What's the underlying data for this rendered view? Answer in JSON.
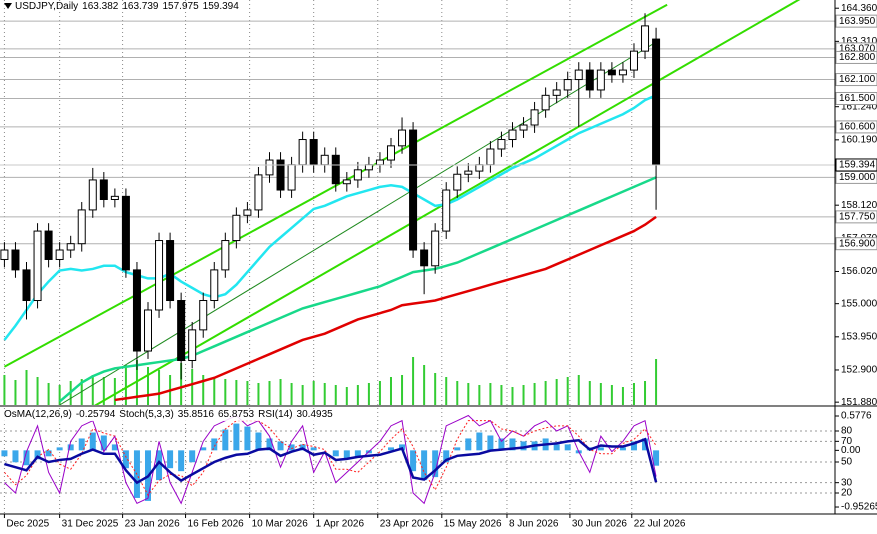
{
  "chart_data": [
    {
      "type": "candlestick",
      "title": "USDJPY,Daily",
      "open": [
        156.4,
        156.7,
        156.07,
        155.1,
        157.3,
        156.4,
        156.7,
        156.9,
        157.97,
        158.92,
        158.3,
        158.4,
        156.07,
        153.5,
        154.8,
        157.0,
        155.1,
        153.2,
        154.17,
        155.1,
        156.07,
        157.0,
        157.8,
        157.97,
        159.08,
        159.55,
        158.6,
        159.4,
        160.2,
        159.4,
        159.7,
        158.8,
        158.92,
        159.24,
        159.4,
        159.55,
        160.0,
        160.5,
        156.7,
        156.2,
        157.3,
        158.6,
        159.1,
        159.2,
        159.4,
        159.9,
        160.2,
        160.5,
        160.66,
        161.14,
        161.6,
        161.77,
        162.1,
        162.4,
        161.77,
        162.4,
        162.25,
        162.4,
        163.0,
        163.382
      ],
      "high": [
        156.95,
        156.95,
        156.32,
        157.55,
        157.55,
        156.95,
        157.15,
        158.22,
        159.3,
        159.17,
        158.65,
        158.65,
        156.32,
        155.05,
        157.25,
        157.25,
        155.35,
        154.42,
        155.35,
        156.32,
        157.25,
        158.05,
        158.22,
        159.33,
        159.8,
        159.8,
        159.65,
        160.45,
        160.45,
        159.95,
        159.95,
        159.17,
        159.49,
        159.65,
        159.8,
        160.25,
        160.9,
        160.75,
        156.95,
        157.55,
        158.85,
        159.35,
        159.45,
        159.65,
        160.15,
        160.45,
        160.75,
        160.91,
        161.39,
        161.85,
        162.02,
        162.35,
        162.65,
        162.65,
        162.65,
        162.65,
        162.65,
        163.25,
        164.2,
        163.739
      ],
      "low": [
        156.15,
        155.82,
        154.5,
        154.85,
        156.15,
        156.15,
        156.45,
        156.65,
        157.72,
        158.05,
        158.05,
        155.82,
        152.9,
        153.25,
        154.55,
        154.85,
        152.6,
        152.95,
        153.92,
        154.85,
        155.82,
        156.75,
        157.55,
        157.72,
        158.83,
        158.35,
        158.35,
        159.15,
        159.15,
        159.15,
        158.55,
        158.55,
        158.67,
        158.99,
        159.15,
        159.3,
        159.75,
        156.45,
        155.3,
        155.95,
        157.05,
        158.35,
        158.85,
        158.95,
        159.15,
        159.65,
        159.95,
        160.25,
        160.41,
        160.89,
        161.35,
        161.52,
        160.6,
        161.52,
        161.52,
        162.0,
        162.0,
        162.15,
        162.75,
        157.975
      ],
      "close": [
        156.7,
        156.07,
        155.1,
        157.3,
        156.4,
        156.7,
        156.9,
        157.97,
        158.92,
        158.3,
        158.4,
        156.07,
        153.5,
        154.8,
        157.0,
        155.1,
        153.2,
        154.17,
        155.1,
        156.07,
        157.0,
        157.8,
        157.97,
        159.08,
        159.55,
        158.6,
        159.4,
        160.2,
        159.4,
        159.7,
        158.8,
        158.92,
        159.24,
        159.4,
        159.55,
        160.0,
        160.5,
        156.7,
        156.2,
        157.3,
        158.6,
        159.1,
        159.2,
        159.4,
        159.9,
        160.2,
        160.5,
        160.66,
        161.14,
        161.6,
        161.77,
        162.1,
        162.4,
        161.77,
        162.4,
        162.25,
        162.4,
        163.0,
        163.8,
        159.394
      ],
      "volume": [
        30,
        25,
        35,
        28,
        22,
        20,
        24,
        26,
        30,
        28,
        27,
        40,
        45,
        38,
        35,
        30,
        42,
        36,
        30,
        28,
        26,
        25,
        24,
        22,
        24,
        26,
        22,
        20,
        24,
        22,
        20,
        18,
        20,
        22,
        24,
        28,
        30,
        48,
        40,
        32,
        28,
        24,
        22,
        20,
        22,
        20,
        18,
        20,
        22,
        24,
        26,
        28,
        30,
        24,
        22,
        20,
        18,
        22,
        24,
        46
      ],
      "up_color": "#ffffff",
      "down_color": "#000000",
      "volume_color": "#33cc33",
      "series": [
        {
          "color": "#22e6f0",
          "values": [
            153.85,
            154.3,
            154.8,
            155.3,
            155.7,
            156.05,
            156.1,
            156.05,
            156.1,
            156.2,
            156.2,
            156.0,
            155.9,
            155.8,
            155.8,
            155.95,
            155.7,
            155.5,
            155.3,
            155.2,
            155.3,
            155.6,
            156.0,
            156.4,
            156.8,
            157.1,
            157.4,
            157.7,
            158.0,
            158.1,
            158.25,
            158.4,
            158.5,
            158.6,
            158.7,
            158.75,
            158.7,
            158.5,
            158.3,
            158.1,
            158.15,
            158.3,
            158.5,
            158.7,
            158.9,
            159.1,
            159.3,
            159.45,
            159.6,
            159.8,
            160.0,
            160.2,
            160.4,
            160.55,
            160.7,
            160.85,
            161.0,
            161.2,
            161.45,
            161.6
          ]
        },
        {
          "color": "#18d98a",
          "values": [
            null,
            null,
            null,
            null,
            null,
            151.9,
            152.2,
            152.5,
            152.7,
            152.85,
            152.95,
            153.0,
            153.05,
            153.1,
            153.15,
            153.2,
            153.25,
            153.35,
            153.5,
            153.65,
            153.8,
            153.95,
            154.1,
            154.25,
            154.4,
            154.55,
            154.7,
            154.85,
            154.95,
            155.05,
            155.15,
            155.25,
            155.35,
            155.45,
            155.55,
            155.7,
            155.85,
            156.0,
            156.05,
            156.1,
            156.2,
            156.3,
            156.45,
            156.6,
            156.75,
            156.9,
            157.05,
            157.2,
            157.35,
            157.5,
            157.65,
            157.8,
            157.95,
            158.1,
            158.25,
            158.4,
            158.55,
            158.7,
            158.85,
            159.0
          ]
        },
        {
          "color": "#e00000",
          "values": [
            null,
            null,
            null,
            null,
            null,
            null,
            null,
            null,
            null,
            null,
            151.95,
            152.0,
            152.05,
            152.1,
            152.15,
            152.25,
            152.35,
            152.45,
            152.55,
            152.65,
            152.8,
            152.95,
            153.1,
            153.25,
            153.4,
            153.55,
            153.7,
            153.85,
            153.95,
            154.05,
            154.2,
            154.35,
            154.5,
            154.6,
            154.7,
            154.8,
            154.95,
            155.0,
            155.05,
            155.1,
            155.2,
            155.3,
            155.4,
            155.5,
            155.6,
            155.7,
            155.8,
            155.9,
            156.0,
            156.1,
            156.25,
            156.4,
            156.55,
            156.7,
            156.85,
            157.0,
            157.15,
            157.3,
            157.5,
            157.75
          ]
        }
      ],
      "trendlines": [
        {
          "color": "#33dd00",
          "x": [
            0,
            60
          ],
          "y": [
            153.0,
            164.47
          ]
        },
        {
          "color": "#33dd00",
          "x": [
            8,
            75
          ],
          "y": [
            151.73,
            165.25
          ]
        },
        {
          "color": "#1f8a1f",
          "x": [
            5,
            59.3
          ],
          "y": [
            151.79,
            163.35
          ]
        }
      ],
      "levels": [
        {
          "value": 163.95,
          "label": "163.950"
        },
        {
          "value": 163.07,
          "label": "163.070"
        },
        {
          "value": 162.8,
          "label": "162.800"
        },
        {
          "value": 162.1,
          "label": "162.100"
        },
        {
          "value": 161.5,
          "label": "161.500"
        },
        {
          "value": 160.6,
          "label": "160.600"
        },
        {
          "value": 159.0,
          "label": "159.000"
        },
        {
          "value": 157.75,
          "label": "157.750"
        },
        {
          "value": 156.9,
          "label": "156.900"
        }
      ],
      "xlim": [
        -0.4,
        75.2
      ],
      "xticks": [
        {
          "value": 0,
          "label": "Dec 2025"
        },
        {
          "value": 5,
          "label": "31 Dec 2025"
        },
        {
          "value": 10.7,
          "label": "23 Jan 2026"
        },
        {
          "value": 16.4,
          "label": "16 Feb 2026"
        },
        {
          "value": 22.2,
          "label": "10 Mar 2026"
        },
        {
          "value": 28,
          "label": "1 Apr 2026"
        },
        {
          "value": 33.8,
          "label": "23 Apr 2026"
        },
        {
          "value": 39.6,
          "label": "15 May 2026"
        },
        {
          "value": 45.5,
          "label": "8 Jun 2026"
        },
        {
          "value": 51.2,
          "label": "30 Jun 2026"
        },
        {
          "value": 56.8,
          "label": "22 Jul 2026"
        }
      ],
      "ylim": [
        151.79,
        164.62
      ],
      "yticks": [
        {
          "value": 164.36,
          "label": "164.360"
        },
        {
          "value": 163.31,
          "label": "163.310"
        },
        {
          "value": 161.24,
          "label": "161.240"
        },
        {
          "value": 160.19,
          "label": "160.190"
        },
        {
          "value": 158.12,
          "label": "158.120"
        },
        {
          "value": 157.07,
          "label": "157.070"
        },
        {
          "value": 156.02,
          "label": "156.020"
        },
        {
          "value": 155.0,
          "label": "155.000"
        },
        {
          "value": 153.95,
          "label": "153.950"
        },
        {
          "value": 152.9,
          "label": "152.900"
        },
        {
          "value": 151.88,
          "label": "151.880"
        }
      ],
      "grid": true
    },
    {
      "type": "oscillator",
      "series": [
        {
          "name": "OsMA(12,26,9)",
          "kind": "histogram",
          "axis": "y2",
          "color": "#3aa7ea",
          "values": [
            -0.1,
            -0.2,
            -0.25,
            -0.15,
            -0.1,
            0.05,
            0.1,
            0.2,
            0.3,
            0.25,
            0.1,
            -0.3,
            -0.8,
            -0.85,
            -0.5,
            -0.3,
            -0.35,
            -0.2,
            0.05,
            0.2,
            0.35,
            0.45,
            0.4,
            0.3,
            0.2,
            0.15,
            0.1,
            0.1,
            0.05,
            0.0,
            -0.1,
            -0.15,
            -0.1,
            -0.05,
            0.0,
            0.05,
            0.1,
            -0.35,
            -0.5,
            -0.45,
            -0.2,
            0.05,
            0.2,
            0.3,
            0.25,
            0.2,
            0.2,
            0.15,
            0.15,
            0.2,
            0.1,
            0.1,
            -0.05,
            0.05,
            0.05,
            0.0,
            0.05,
            0.15,
            0.2,
            -0.25794
          ]
        },
        {
          "name": "Stoch(5,3,3)",
          "color": "#9a00c8",
          "values": [
            30,
            20,
            60,
            85,
            40,
            20,
            70,
            85,
            90,
            60,
            75,
            30,
            10,
            15,
            70,
            30,
            10,
            40,
            70,
            85,
            90,
            95,
            85,
            90,
            75,
            45,
            70,
            85,
            40,
            60,
            30,
            40,
            50,
            60,
            70,
            85,
            90,
            20,
            10,
            40,
            85,
            90,
            95,
            85,
            90,
            70,
            80,
            75,
            85,
            90,
            80,
            85,
            60,
            40,
            75,
            60,
            70,
            85,
            90,
            35.8516
          ]
        },
        {
          "color": "#ff2020",
          "dash": true,
          "values": [
            40,
            28,
            37,
            55,
            62,
            48,
            43,
            58,
            82,
            78,
            75,
            55,
            38,
            18,
            32,
            38,
            37,
            27,
            40,
            65,
            82,
            90,
            90,
            90,
            83,
            70,
            63,
            67,
            65,
            62,
            43,
            43,
            40,
            50,
            60,
            72,
            82,
            65,
            40,
            23,
            45,
            72,
            90,
            90,
            90,
            82,
            80,
            75,
            80,
            83,
            85,
            85,
            75,
            62,
            58,
            58,
            68,
            72,
            82,
            65.8753
          ]
        },
        {
          "name": "RSI(14)",
          "color": "#0a0aa0",
          "values": [
            48,
            45,
            42,
            55,
            50,
            52,
            53,
            58,
            62,
            58,
            58,
            42,
            30,
            36,
            50,
            40,
            32,
            38,
            44,
            50,
            54,
            57,
            58,
            62,
            63,
            56,
            60,
            63,
            57,
            59,
            52,
            53,
            55,
            56,
            57,
            60,
            63,
            35,
            33,
            42,
            52,
            56,
            57,
            58,
            61,
            62,
            63,
            64,
            66,
            67,
            68,
            70,
            71,
            62,
            66,
            65,
            65,
            68,
            72,
            30.4935
          ]
        }
      ],
      "ylim": [
        -0.32,
        102.26
      ],
      "yticks": [
        80,
        70,
        50,
        30,
        20
      ],
      "y2lim": [
        -1.07,
        0.712
      ],
      "y2ticks": [
        0.5776,
        {
          "value": 0,
          "label": "0.00"
        },
        -0.95265
      ],
      "grid": true
    }
  ]
}
